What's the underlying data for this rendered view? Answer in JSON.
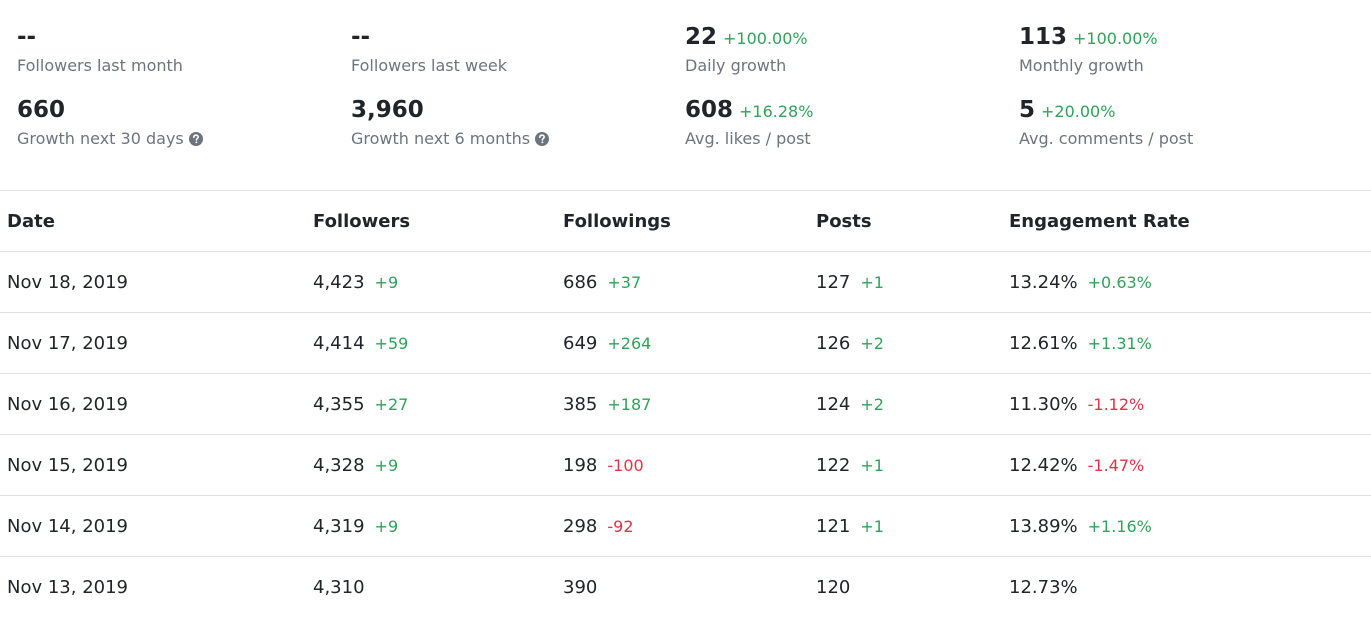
{
  "stats": [
    {
      "value": "--",
      "label": "Followers last month"
    },
    {
      "value": "--",
      "label": "Followers last week"
    },
    {
      "value": "22",
      "change": "+100.00%",
      "label": "Daily growth"
    },
    {
      "value": "113",
      "change": "+100.00%",
      "label": "Monthly growth"
    },
    {
      "value": "660",
      "label": "Growth next 30 days",
      "help": true
    },
    {
      "value": "3,960",
      "label": "Growth next 6 months",
      "help": true
    },
    {
      "value": "608",
      "change": "+16.28%",
      "label": "Avg. likes / post"
    },
    {
      "value": "5",
      "change": "+20.00%",
      "label": "Avg. comments / post"
    }
  ],
  "table": {
    "headers": [
      "Date",
      "Followers",
      "Followings",
      "Posts",
      "Engagement Rate"
    ],
    "rows": [
      [
        {
          "value": "Nov 18, 2019"
        },
        {
          "value": "4,423",
          "change": "+9"
        },
        {
          "value": "686",
          "change": "+37"
        },
        {
          "value": "127",
          "change": "+1"
        },
        {
          "value": "13.24%",
          "change": "+0.63%"
        }
      ],
      [
        {
          "value": "Nov 17, 2019"
        },
        {
          "value": "4,414",
          "change": "+59"
        },
        {
          "value": "649",
          "change": "+264"
        },
        {
          "value": "126",
          "change": "+2"
        },
        {
          "value": "12.61%",
          "change": "+1.31%"
        }
      ],
      [
        {
          "value": "Nov 16, 2019"
        },
        {
          "value": "4,355",
          "change": "+27"
        },
        {
          "value": "385",
          "change": "+187"
        },
        {
          "value": "124",
          "change": "+2"
        },
        {
          "value": "11.30%",
          "change": "-1.12%"
        }
      ],
      [
        {
          "value": "Nov 15, 2019"
        },
        {
          "value": "4,328",
          "change": "+9"
        },
        {
          "value": "198",
          "change": "-100"
        },
        {
          "value": "122",
          "change": "+1"
        },
        {
          "value": "12.42%",
          "change": "-1.47%"
        }
      ],
      [
        {
          "value": "Nov 14, 2019"
        },
        {
          "value": "4,319",
          "change": "+9"
        },
        {
          "value": "298",
          "change": "-92"
        },
        {
          "value": "121",
          "change": "+1"
        },
        {
          "value": "13.89%",
          "change": "+1.16%"
        }
      ],
      [
        {
          "value": "Nov 13, 2019"
        },
        {
          "value": "4,310"
        },
        {
          "value": "390"
        },
        {
          "value": "120"
        },
        {
          "value": "12.73%"
        }
      ]
    ]
  }
}
